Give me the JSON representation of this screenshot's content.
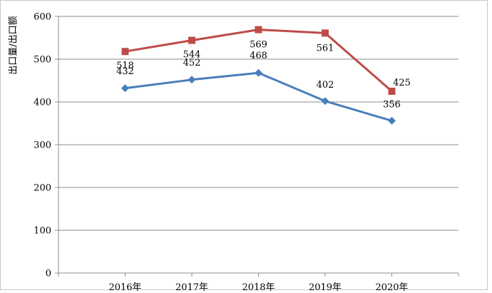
{
  "chart_data": {
    "type": "line",
    "title": "",
    "xlabel": "",
    "ylabel": "出口量/出口额",
    "categories": [
      "2016年",
      "2017年",
      "2018年",
      "2019年",
      "2020年"
    ],
    "ylim": [
      0,
      600
    ],
    "yticks": [
      0,
      100,
      200,
      300,
      400,
      500,
      600
    ],
    "grid": true,
    "legend": "none",
    "series": [
      {
        "values": [
          518,
          544,
          569,
          561,
          425
        ],
        "color": "#be4b48",
        "marker": "square"
      },
      {
        "values": [
          432,
          452,
          468,
          402,
          356
        ],
        "color": "#4a7ebb",
        "marker": "diamond"
      }
    ]
  }
}
